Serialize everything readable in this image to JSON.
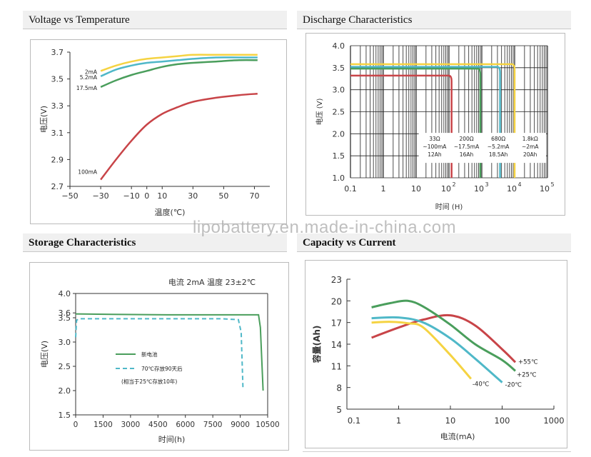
{
  "headers": {
    "voltage_temp": "Voltage vs Temperature",
    "discharge": "Discharge Characteristics",
    "storage": "Storage Characteristics",
    "capacity": "Capacity vs Current"
  },
  "watermark": "lipobattery.en.made-in-china.com",
  "chart_data": [
    {
      "id": "voltage_temp",
      "type": "line",
      "title": "Voltage vs Temperature",
      "xlabel": "温度(℃)",
      "ylabel": "电压(V)",
      "xlim": [
        -50,
        80
      ],
      "ylim": [
        2.7,
        3.7
      ],
      "xticks": [
        -50,
        -30,
        -10,
        0,
        10,
        30,
        50,
        70
      ],
      "xtick_labels": [
        "−50",
        "−30",
        "−10",
        "0",
        "10",
        "30",
        "50",
        "70"
      ],
      "yticks": [
        2.7,
        2.9,
        3.1,
        3.3,
        3.5,
        3.7
      ],
      "ytick_labels": [
        "2.7",
        "2.9",
        "3.1",
        "3.3",
        "3.5",
        "3.7"
      ],
      "series": [
        {
          "name": "2mA",
          "color": "#f5d342",
          "x": [
            -30,
            -20,
            -10,
            0,
            10,
            20,
            30,
            45,
            60,
            72
          ],
          "y": [
            3.56,
            3.6,
            3.63,
            3.65,
            3.66,
            3.67,
            3.68,
            3.68,
            3.68,
            3.68
          ]
        },
        {
          "name": "5.2mA",
          "color": "#4fb8c8",
          "x": [
            -30,
            -20,
            -10,
            0,
            10,
            20,
            30,
            45,
            60,
            72
          ],
          "y": [
            3.52,
            3.57,
            3.6,
            3.62,
            3.63,
            3.64,
            3.65,
            3.66,
            3.66,
            3.66
          ]
        },
        {
          "name": "17.5mA",
          "color": "#4a9e5c",
          "x": [
            -30,
            -20,
            -10,
            0,
            10,
            20,
            30,
            45,
            60,
            72
          ],
          "y": [
            3.44,
            3.49,
            3.53,
            3.56,
            3.59,
            3.61,
            3.62,
            3.63,
            3.64,
            3.64
          ]
        },
        {
          "name": "100mA",
          "color": "#c84448",
          "x": [
            -30,
            -20,
            -10,
            0,
            10,
            20,
            30,
            45,
            60,
            72
          ],
          "y": [
            2.75,
            2.9,
            3.04,
            3.16,
            3.24,
            3.29,
            3.33,
            3.36,
            3.38,
            3.39
          ]
        }
      ]
    },
    {
      "id": "discharge",
      "type": "line",
      "title": "Discharge Characteristics",
      "xlabel": "时间 (H)",
      "ylabel": "电压 (V)",
      "xscale": "log",
      "xlim": [
        0.1,
        100000
      ],
      "ylim": [
        1.0,
        4.0
      ],
      "yticks": [
        1.0,
        1.5,
        2.0,
        2.5,
        3.0,
        3.5,
        4.0
      ],
      "ytick_labels": [
        "1.0",
        "1.5",
        "2.0",
        "2.5",
        "3.0",
        "3.5",
        "4.0"
      ],
      "xtick_labels": [
        "0.1",
        "1",
        "10",
        "10",
        "10",
        "10",
        "10"
      ],
      "xtick_exponents": [
        "",
        "",
        "",
        "2",
        "3",
        "4",
        "5"
      ],
      "grid": true,
      "legend_labels": [
        [
          "33Ω",
          "~100mA",
          "12Ah"
        ],
        [
          "200Ω",
          "~17.5mA",
          "16Ah"
        ],
        [
          "680Ω",
          "~5.2mA",
          "18.5Ah"
        ],
        [
          "1.8kΩ",
          "~2mA",
          "20Ah"
        ]
      ],
      "series": [
        {
          "name": "33Ω ~100mA 12Ah",
          "color": "#c84448",
          "plateau": 3.32,
          "end_hours": 120
        },
        {
          "name": "200Ω ~17.5mA 16Ah",
          "color": "#4a9e5c",
          "plateau": 3.48,
          "end_hours": 900
        },
        {
          "name": "680Ω ~5.2mA 18.5Ah",
          "color": "#4fb8c8",
          "plateau": 3.52,
          "end_hours": 3600
        },
        {
          "name": "1.8kΩ ~2mA 20Ah",
          "color": "#f5d342",
          "plateau": 3.58,
          "end_hours": 10000
        }
      ]
    },
    {
      "id": "storage",
      "type": "line",
      "title": "Storage Characteristics",
      "annotation": "电流 2mA   温度 23±2℃",
      "xlabel": "时间(h)",
      "ylabel": "电压(V)",
      "xlim": [
        0,
        10500
      ],
      "ylim": [
        1.5,
        4.0
      ],
      "xticks": [
        0,
        1500,
        3000,
        4500,
        6000,
        7500,
        9000,
        10500
      ],
      "xtick_labels": [
        "0",
        "1500",
        "3000",
        "4500",
        "6000",
        "7500",
        "9000",
        "10500"
      ],
      "yticks": [
        1.5,
        2.0,
        2.5,
        3.0,
        3.5,
        3.6,
        4.0
      ],
      "ytick_labels": [
        "1.5",
        "2.0",
        "2.5",
        "3.0",
        "3.5",
        "3.6",
        "4.0"
      ],
      "series": [
        {
          "name": "新电池",
          "color": "#4a9e5c",
          "style": "solid",
          "x": [
            0,
            2000,
            5000,
            8000,
            9500,
            10000,
            10100,
            10250
          ],
          "y": [
            3.58,
            3.57,
            3.56,
            3.56,
            3.56,
            3.56,
            3.3,
            2.0
          ]
        },
        {
          "name": "70℃存放90天后",
          "color": "#4fb8c8",
          "style": "dashed",
          "x": [
            0,
            50,
            200,
            2000,
            5000,
            8000,
            8900,
            9050,
            9150
          ],
          "y": [
            3.1,
            3.45,
            3.48,
            3.48,
            3.48,
            3.48,
            3.46,
            3.2,
            2.05
          ]
        }
      ],
      "legend_note": "(相当于25℃存放10年)"
    },
    {
      "id": "capacity",
      "type": "line",
      "title": "Capacity vs Current",
      "xlabel": "电流(mA)",
      "ylabel": "容量(Ah)",
      "xscale": "log",
      "xlim": [
        0.1,
        1000
      ],
      "ylim": [
        5,
        23
      ],
      "xticks": [
        0.1,
        1,
        10,
        100,
        1000
      ],
      "xtick_labels": [
        "0.1",
        "1",
        "10",
        "100",
        "1000"
      ],
      "yticks": [
        5,
        8,
        11,
        14,
        17,
        20,
        23
      ],
      "ytick_labels": [
        "5",
        "8",
        "11",
        "14",
        "17",
        "20",
        "23"
      ],
      "series": [
        {
          "name": "+55℃",
          "color": "#c84448",
          "x": [
            0.3,
            1,
            3,
            10,
            30,
            100,
            180
          ],
          "y": [
            14.9,
            16.3,
            17.4,
            18.0,
            16.6,
            13.3,
            11.5
          ]
        },
        {
          "name": "+25℃",
          "color": "#4a9e5c",
          "x": [
            0.3,
            0.7,
            1.5,
            3,
            10,
            30,
            100,
            180
          ],
          "y": [
            19.1,
            19.7,
            20.0,
            19.2,
            16.7,
            14.0,
            11.8,
            10.3
          ]
        },
        {
          "name": "-20℃",
          "color": "#4fb8c8",
          "x": [
            0.3,
            1,
            3,
            10,
            30,
            100
          ],
          "y": [
            17.6,
            17.7,
            17.0,
            14.8,
            12.0,
            8.7
          ]
        },
        {
          "name": "-40℃",
          "color": "#f5d342",
          "x": [
            0.3,
            0.7,
            1.5,
            3,
            10,
            25
          ],
          "y": [
            17.0,
            17.1,
            16.9,
            16.3,
            12.5,
            9.2
          ]
        }
      ]
    }
  ]
}
